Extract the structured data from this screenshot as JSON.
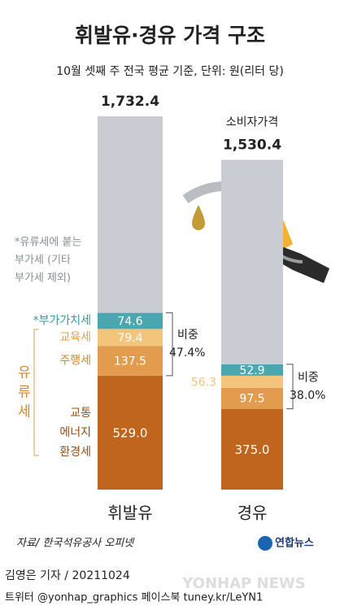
{
  "chart_data": {
    "type": "stacked_bar",
    "title": "휘발유·경유 가격 구조",
    "subtitle": "10월 셋째 주 전국 평균 기준, 단위: 원(리터 당)",
    "categories": [
      "휘발유",
      "경유"
    ],
    "series": [
      {
        "name": "교통 에너지 환경세",
        "color": "#c0651e",
        "values": [
          529.0,
          375.0
        ],
        "value_labels": [
          "529.0",
          "375.0"
        ]
      },
      {
        "name": "주행세",
        "color": "#e39c4e",
        "values": [
          137.5,
          97.5
        ],
        "value_labels": [
          "137.5",
          "97.5"
        ]
      },
      {
        "name": "교육세",
        "color": "#f2c47c",
        "values": [
          79.4,
          56.3
        ],
        "value_labels": [
          "79.4",
          "56.3"
        ]
      },
      {
        "name": "*부가가치세",
        "color": "#4aa7b0",
        "values": [
          74.6,
          52.9
        ],
        "value_labels": [
          "74.6",
          "52.9"
        ]
      },
      {
        "color": "#c9cdd3",
        "values": [
          911.9,
          948.7
        ]
      }
    ],
    "totals": [
      1732.4,
      1530.4
    ],
    "total_labels": [
      "1,732.4",
      "1,530.4"
    ],
    "price_label": "소비자가격",
    "group_label": "유류세",
    "share_label": "비중",
    "shares": [
      47.4,
      38.0
    ],
    "share_labels": [
      "47.4%",
      "38.0%"
    ],
    "note": [
      "*유류세에 붙는",
      "부가세 (기타",
      "부가세 제외)"
    ]
  },
  "source": "자료/ 한국석유공사 오피넷",
  "logo": "연합뉴스",
  "watermark": "YONHAP NEWS",
  "byline": "김영은 기자 / 20211024",
  "social": "트위터 @yonhap_graphics  페이스북 tuney.kr/LeYN1"
}
